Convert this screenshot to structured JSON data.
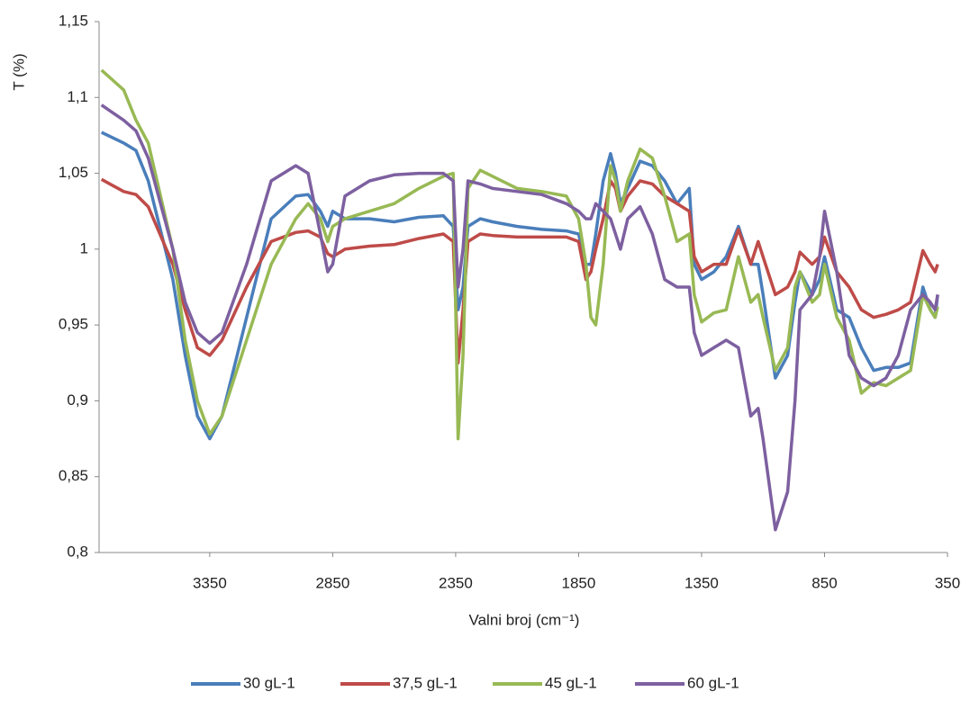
{
  "chart_data": {
    "type": "line",
    "xlabel": "Valni broj (cm⁻¹)",
    "ylabel": "T (%)",
    "x": [
      3790,
      3700,
      3650,
      3600,
      3500,
      3450,
      3400,
      3350,
      3300,
      3200,
      3100,
      3000,
      2950,
      2900,
      2870,
      2850,
      2800,
      2700,
      2600,
      2500,
      2400,
      2360,
      2340,
      2320,
      2300,
      2250,
      2200,
      2100,
      2000,
      1900,
      1850,
      1820,
      1800,
      1780,
      1750,
      1720,
      1700,
      1680,
      1650,
      1600,
      1550,
      1500,
      1450,
      1400,
      1380,
      1350,
      1300,
      1250,
      1200,
      1150,
      1120,
      1100,
      1050,
      1000,
      970,
      950,
      900,
      870,
      850,
      800,
      750,
      700,
      650,
      600,
      550,
      500,
      450,
      420,
      400,
      390
    ],
    "series": [
      {
        "name": "30 gL-1",
        "color": "#4a7ebb",
        "values": [
          1.077,
          1.07,
          1.065,
          1.045,
          0.98,
          0.93,
          0.89,
          0.875,
          0.89,
          0.955,
          1.02,
          1.035,
          1.036,
          1.025,
          1.015,
          1.025,
          1.02,
          1.02,
          1.018,
          1.021,
          1.022,
          1.015,
          0.96,
          0.975,
          1.015,
          1.02,
          1.018,
          1.015,
          1.013,
          1.012,
          1.01,
          0.99,
          0.99,
          1.01,
          1.045,
          1.063,
          1.05,
          1.03,
          1.04,
          1.058,
          1.055,
          1.045,
          1.03,
          1.04,
          0.99,
          0.98,
          0.985,
          0.995,
          1.015,
          0.99,
          0.99,
          0.97,
          0.915,
          0.93,
          0.965,
          0.985,
          0.97,
          0.98,
          0.995,
          0.96,
          0.955,
          0.935,
          0.92,
          0.922,
          0.922,
          0.925,
          0.975,
          0.96,
          0.955,
          0.97
        ]
      },
      {
        "name": "37,5 gL-1",
        "color": "#be4b48",
        "values": [
          1.046,
          1.038,
          1.036,
          1.028,
          0.99,
          0.96,
          0.935,
          0.93,
          0.94,
          0.975,
          1.005,
          1.011,
          1.012,
          1.008,
          0.997,
          0.995,
          1.0,
          1.002,
          1.003,
          1.007,
          1.01,
          1.005,
          0.925,
          0.96,
          1.005,
          1.01,
          1.009,
          1.008,
          1.008,
          1.008,
          1.005,
          0.98,
          0.985,
          1.0,
          1.02,
          1.045,
          1.04,
          1.025,
          1.035,
          1.045,
          1.043,
          1.035,
          1.03,
          1.025,
          0.995,
          0.985,
          0.99,
          0.99,
          1.013,
          0.99,
          1.005,
          0.995,
          0.97,
          0.975,
          0.985,
          0.998,
          0.99,
          0.995,
          1.008,
          0.985,
          0.975,
          0.96,
          0.955,
          0.957,
          0.96,
          0.965,
          0.999,
          0.99,
          0.985,
          0.99
        ]
      },
      {
        "name": "45 gL-1",
        "color": "#98b954",
        "values": [
          1.118,
          1.105,
          1.085,
          1.07,
          1.0,
          0.94,
          0.9,
          0.878,
          0.89,
          0.94,
          0.99,
          1.02,
          1.03,
          1.02,
          1.005,
          1.015,
          1.02,
          1.025,
          1.03,
          1.04,
          1.048,
          1.05,
          0.875,
          0.93,
          1.04,
          1.052,
          1.048,
          1.04,
          1.038,
          1.035,
          1.02,
          0.99,
          0.955,
          0.95,
          0.99,
          1.055,
          1.045,
          1.025,
          1.045,
          1.066,
          1.06,
          1.035,
          1.005,
          1.01,
          0.97,
          0.952,
          0.958,
          0.96,
          0.995,
          0.965,
          0.97,
          0.955,
          0.92,
          0.935,
          0.975,
          0.985,
          0.965,
          0.97,
          0.99,
          0.955,
          0.94,
          0.905,
          0.912,
          0.91,
          0.915,
          0.92,
          0.97,
          0.96,
          0.955,
          0.962
        ]
      },
      {
        "name": "60 gL-1",
        "color": "#7d60a0",
        "values": [
          1.095,
          1.085,
          1.078,
          1.06,
          1.0,
          0.965,
          0.945,
          0.938,
          0.945,
          0.99,
          1.045,
          1.055,
          1.05,
          1.01,
          0.985,
          0.99,
          1.035,
          1.045,
          1.049,
          1.05,
          1.05,
          1.045,
          0.975,
          1.0,
          1.045,
          1.043,
          1.04,
          1.038,
          1.036,
          1.03,
          1.025,
          1.02,
          1.02,
          1.03,
          1.025,
          1.02,
          1.01,
          1.0,
          1.02,
          1.028,
          1.01,
          0.98,
          0.975,
          0.975,
          0.945,
          0.93,
          0.935,
          0.94,
          0.935,
          0.89,
          0.895,
          0.875,
          0.815,
          0.84,
          0.9,
          0.96,
          0.97,
          0.995,
          1.025,
          0.985,
          0.93,
          0.915,
          0.91,
          0.915,
          0.93,
          0.96,
          0.97,
          0.965,
          0.96,
          0.97
        ]
      }
    ],
    "xlim": [
      3800,
      350
    ],
    "xticks": [
      3350,
      2850,
      2350,
      1850,
      1350,
      850,
      350
    ],
    "ylim": [
      0.8,
      1.15
    ],
    "yticks": [
      {
        "value": 0.8,
        "label": "0,8"
      },
      {
        "value": 0.85,
        "label": "0,85"
      },
      {
        "value": 0.9,
        "label": "0,9"
      },
      {
        "value": 0.95,
        "label": "0,95"
      },
      1,
      {
        "value": 1.05,
        "label": "1,05"
      },
      {
        "value": 1.1,
        "label": "1,1"
      },
      {
        "value": 1.15,
        "label": "1,15"
      }
    ],
    "legend": "bottom"
  }
}
